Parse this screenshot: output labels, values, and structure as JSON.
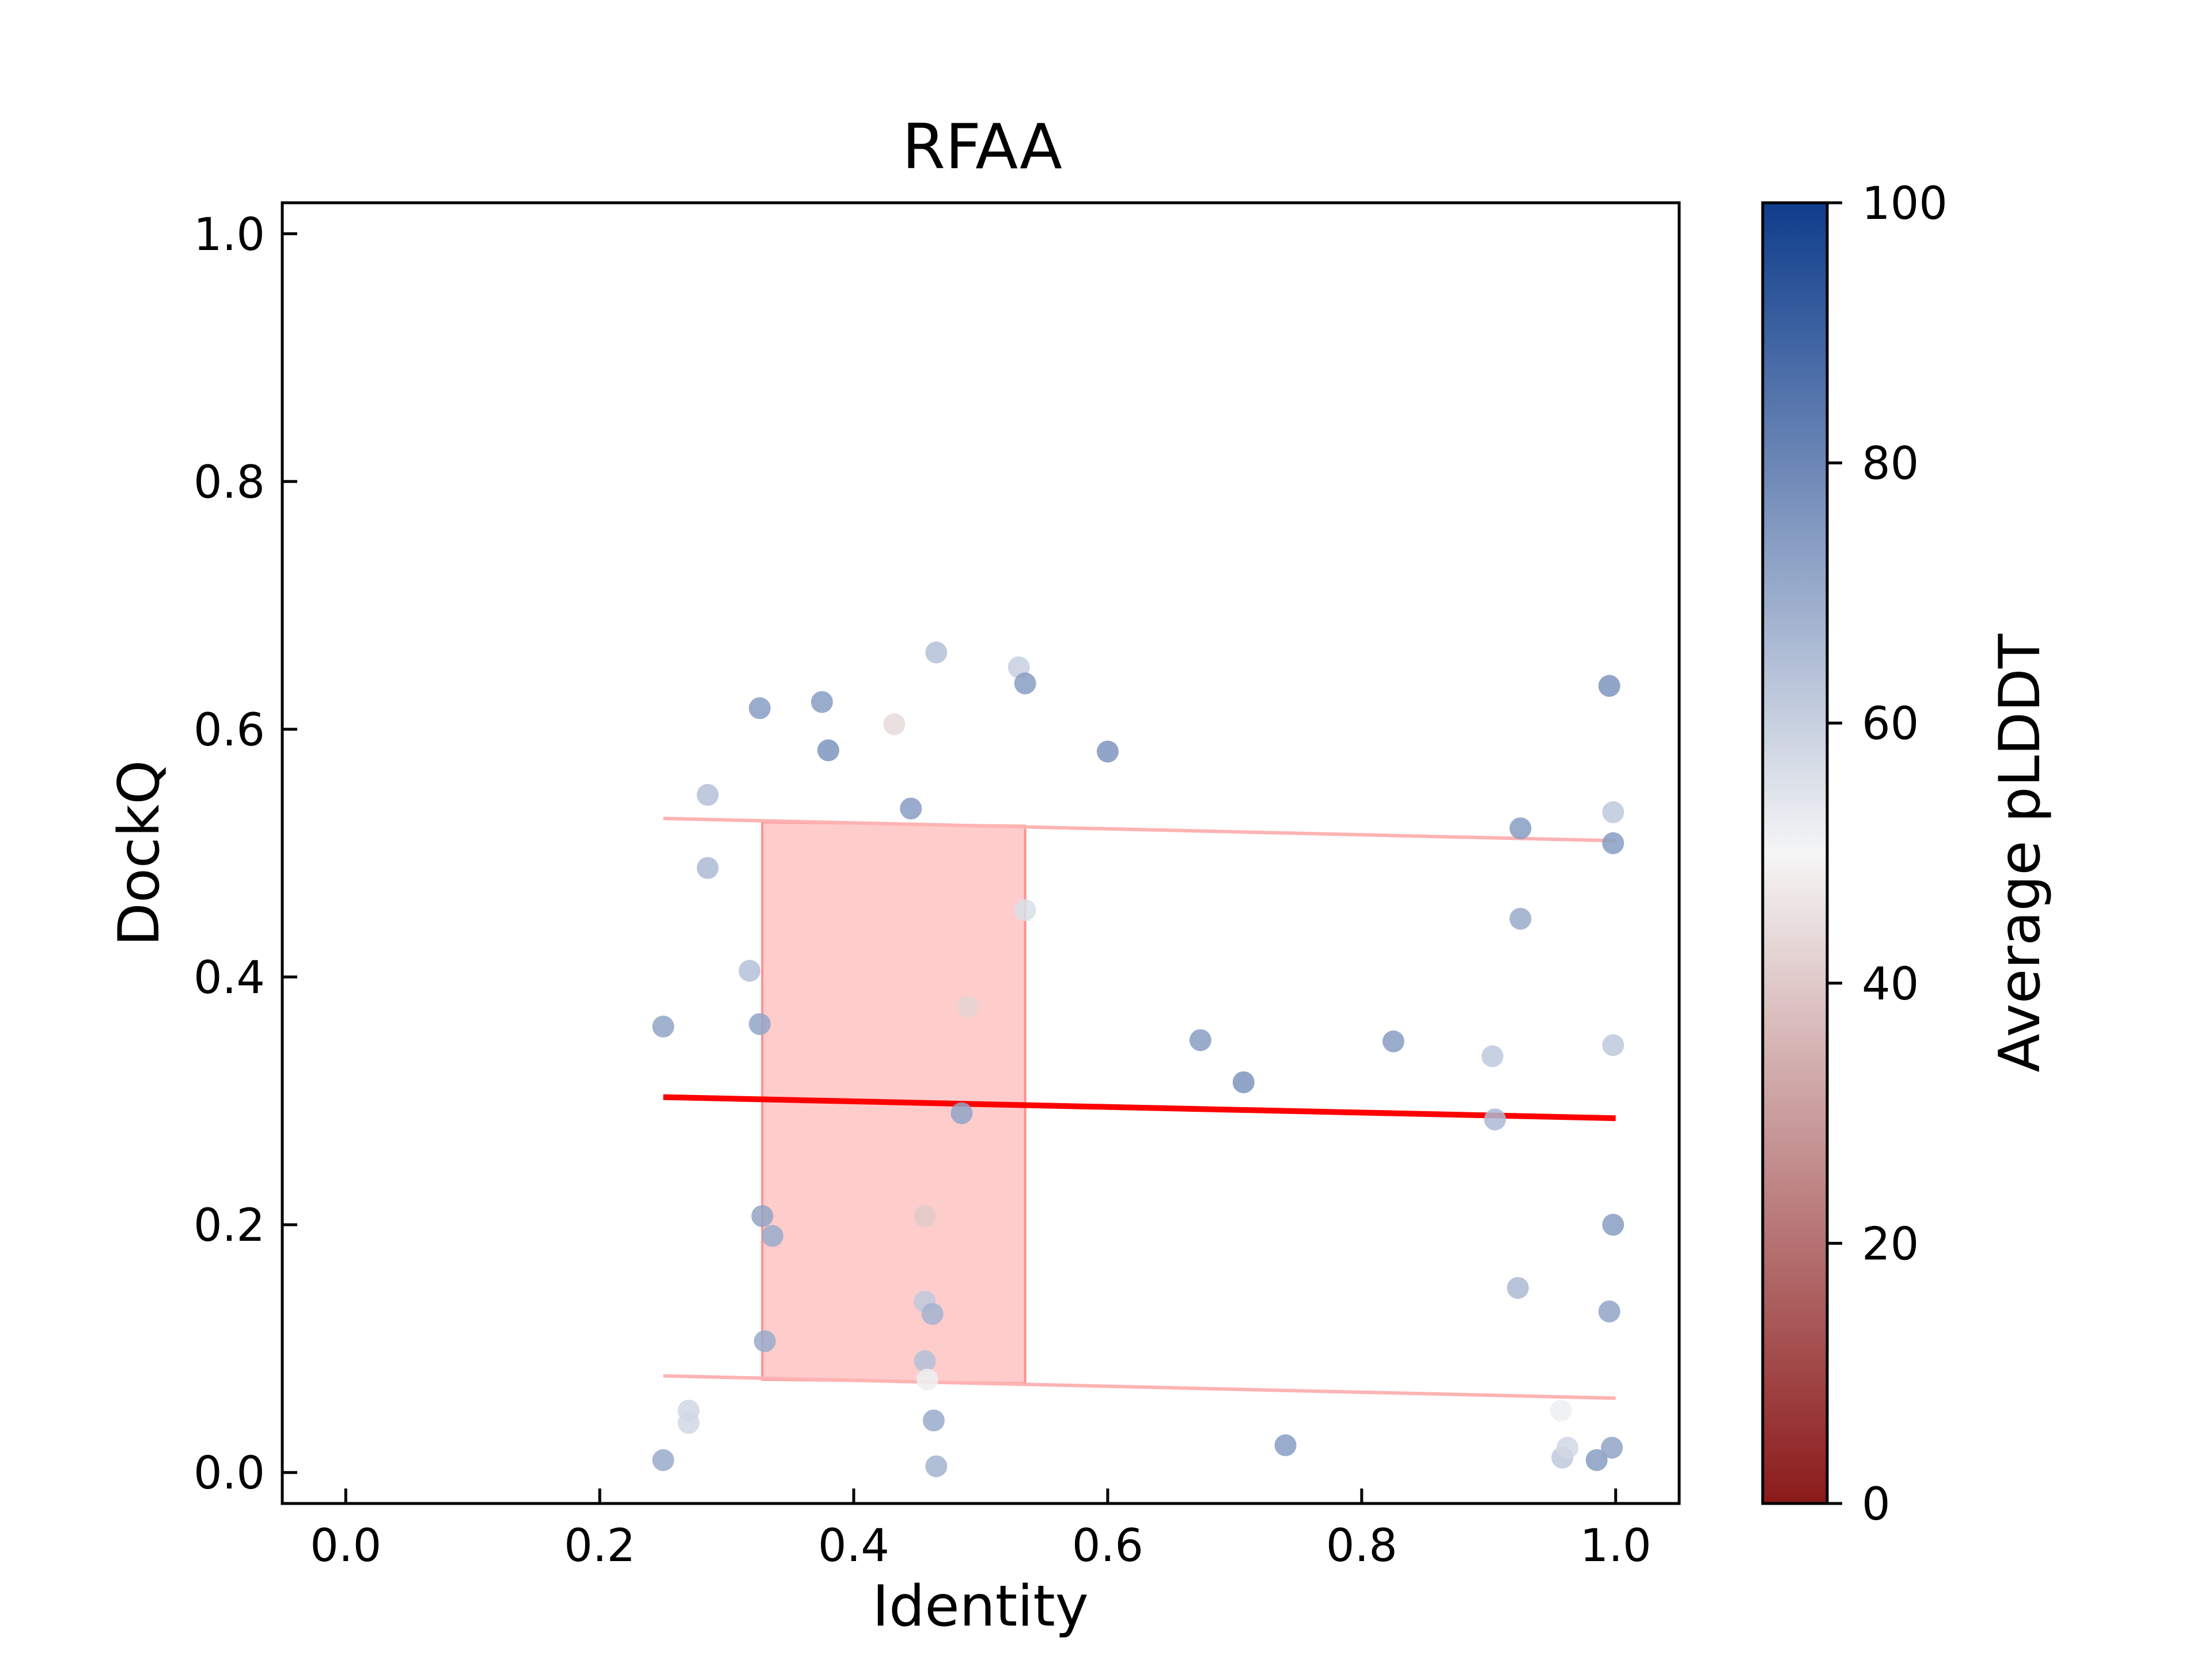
{
  "chart_data": {
    "type": "scatter",
    "title": "RFAA",
    "xlabel": "Identity",
    "ylabel": "DockQ",
    "xlim": [
      -0.05,
      1.05
    ],
    "ylim": [
      -0.025,
      1.025
    ],
    "xticks": [
      "0.0",
      "0.2",
      "0.4",
      "0.6",
      "0.8",
      "1.0"
    ],
    "yticks": [
      "0.0",
      "0.2",
      "0.4",
      "0.6",
      "0.8",
      "1.0"
    ],
    "grid": false,
    "colorbar": {
      "label": "Average pLDDT",
      "range": [
        0,
        100
      ],
      "ticks": [
        "0",
        "20",
        "40",
        "60",
        "80",
        "100"
      ],
      "colors": [
        "#8b1a1a",
        "#f5f5f5",
        "#0f3d8c"
      ]
    },
    "points": [
      {
        "x": 0.25,
        "y": 0.36,
        "c": 72
      },
      {
        "x": 0.25,
        "y": 0.01,
        "c": 70
      },
      {
        "x": 0.27,
        "y": 0.05,
        "c": 58
      },
      {
        "x": 0.27,
        "y": 0.04,
        "c": 58
      },
      {
        "x": 0.285,
        "y": 0.547,
        "c": 64
      },
      {
        "x": 0.285,
        "y": 0.488,
        "c": 66
      },
      {
        "x": 0.318,
        "y": 0.405,
        "c": 64
      },
      {
        "x": 0.326,
        "y": 0.617,
        "c": 74
      },
      {
        "x": 0.326,
        "y": 0.362,
        "c": 72
      },
      {
        "x": 0.328,
        "y": 0.207,
        "c": 72
      },
      {
        "x": 0.33,
        "y": 0.106,
        "c": 70
      },
      {
        "x": 0.336,
        "y": 0.191,
        "c": 70
      },
      {
        "x": 0.375,
        "y": 0.622,
        "c": 74
      },
      {
        "x": 0.38,
        "y": 0.583,
        "c": 76
      },
      {
        "x": 0.432,
        "y": 0.604,
        "c": 44
      },
      {
        "x": 0.445,
        "y": 0.536,
        "c": 74
      },
      {
        "x": 0.456,
        "y": 0.207,
        "c": 40
      },
      {
        "x": 0.456,
        "y": 0.138,
        "c": 62
      },
      {
        "x": 0.456,
        "y": 0.09,
        "c": 64
      },
      {
        "x": 0.458,
        "y": 0.075,
        "c": 52
      },
      {
        "x": 0.462,
        "y": 0.128,
        "c": 68
      },
      {
        "x": 0.463,
        "y": 0.042,
        "c": 70
      },
      {
        "x": 0.465,
        "y": 0.662,
        "c": 64
      },
      {
        "x": 0.465,
        "y": 0.005,
        "c": 68
      },
      {
        "x": 0.485,
        "y": 0.29,
        "c": 72
      },
      {
        "x": 0.49,
        "y": 0.376,
        "c": 42
      },
      {
        "x": 0.53,
        "y": 0.65,
        "c": 60
      },
      {
        "x": 0.535,
        "y": 0.637,
        "c": 74
      },
      {
        "x": 0.535,
        "y": 0.454,
        "c": 56
      },
      {
        "x": 0.6,
        "y": 0.582,
        "c": 76
      },
      {
        "x": 0.673,
        "y": 0.349,
        "c": 74
      },
      {
        "x": 0.707,
        "y": 0.315,
        "c": 76
      },
      {
        "x": 0.74,
        "y": 0.022,
        "c": 74
      },
      {
        "x": 0.825,
        "y": 0.348,
        "c": 74
      },
      {
        "x": 0.903,
        "y": 0.336,
        "c": 62
      },
      {
        "x": 0.905,
        "y": 0.285,
        "c": 66
      },
      {
        "x": 0.923,
        "y": 0.149,
        "c": 66
      },
      {
        "x": 0.925,
        "y": 0.52,
        "c": 74
      },
      {
        "x": 0.925,
        "y": 0.447,
        "c": 70
      },
      {
        "x": 0.957,
        "y": 0.05,
        "c": 52
      },
      {
        "x": 0.958,
        "y": 0.012,
        "c": 62
      },
      {
        "x": 0.962,
        "y": 0.02,
        "c": 58
      },
      {
        "x": 0.985,
        "y": 0.01,
        "c": 74
      },
      {
        "x": 0.995,
        "y": 0.635,
        "c": 76
      },
      {
        "x": 0.995,
        "y": 0.13,
        "c": 72
      },
      {
        "x": 0.997,
        "y": 0.02,
        "c": 72
      },
      {
        "x": 0.998,
        "y": 0.533,
        "c": 62
      },
      {
        "x": 0.998,
        "y": 0.508,
        "c": 74
      },
      {
        "x": 0.998,
        "y": 0.345,
        "c": 62
      },
      {
        "x": 0.998,
        "y": 0.2,
        "c": 74
      }
    ],
    "regression": {
      "x": [
        0.25,
        1.0
      ],
      "y": [
        0.303,
        0.286
      ],
      "color": "#ff0000"
    },
    "band_upper": {
      "x": [
        0.25,
        1.0
      ],
      "y": [
        0.528,
        0.51
      ],
      "color": "#ffb3b3"
    },
    "band_lower": {
      "x": [
        0.25,
        1.0
      ],
      "y": [
        0.078,
        0.06
      ],
      "color": "#ffb3b3"
    },
    "iqr_box": {
      "x": [
        0.328,
        0.535
      ],
      "y_bottom": [
        0.075,
        0.072
      ],
      "y_top": [
        0.525,
        0.522
      ],
      "color": "#ffb0b0"
    }
  }
}
